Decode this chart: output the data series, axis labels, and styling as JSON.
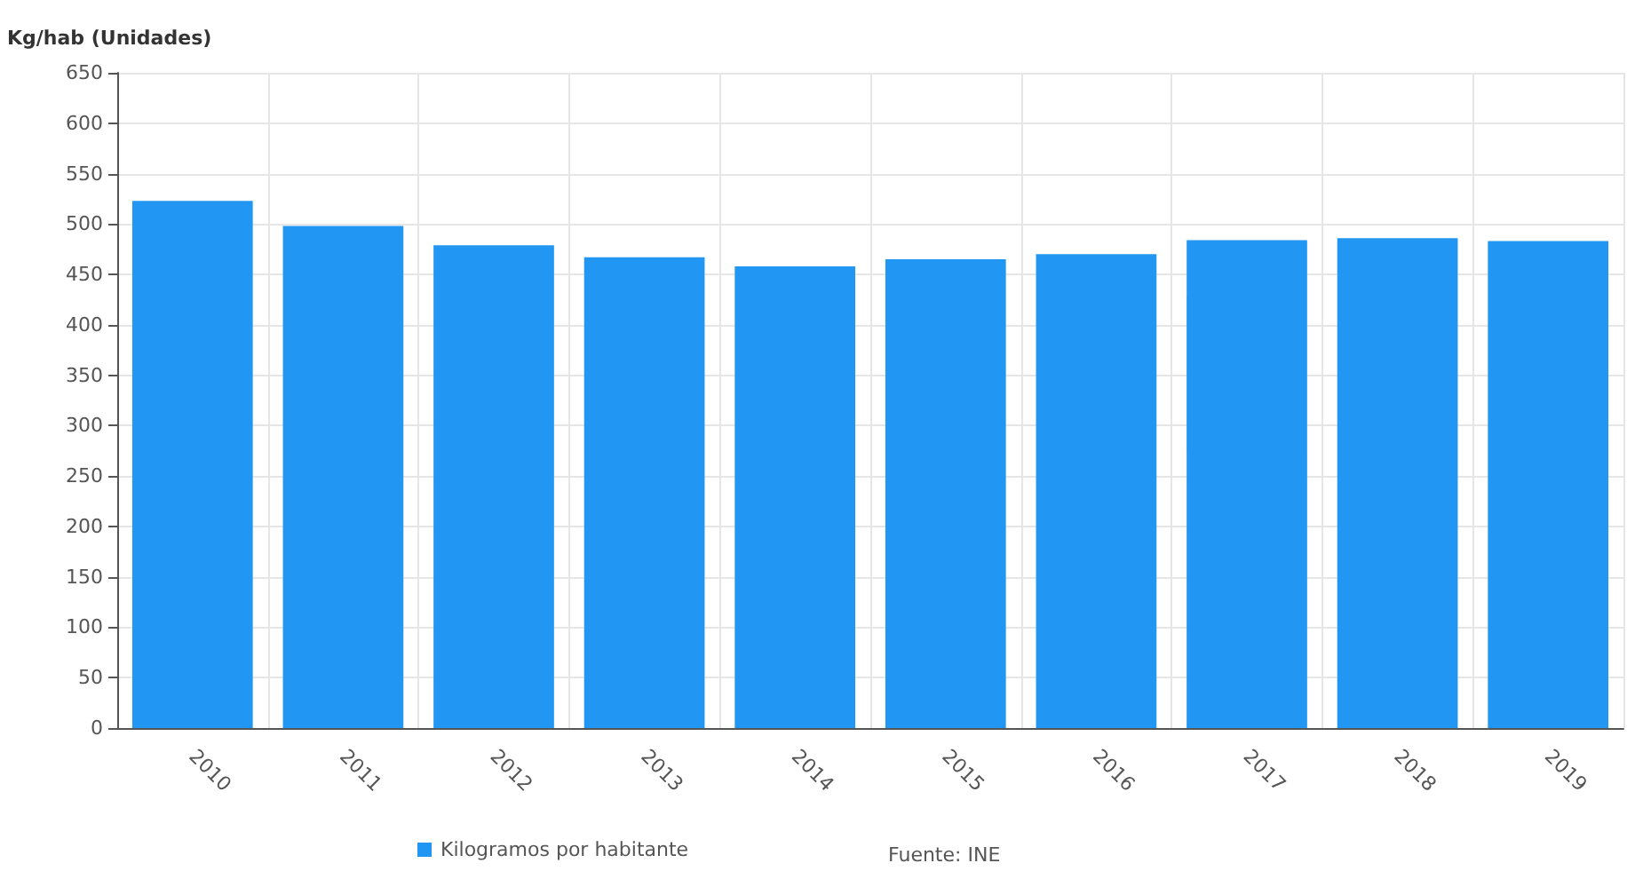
{
  "chart_data": {
    "type": "bar",
    "ylabel": "Kg/hab (Unidades)",
    "categories": [
      "2010",
      "2011",
      "2012",
      "2013",
      "2014",
      "2015",
      "2016",
      "2017",
      "2018",
      "2019"
    ],
    "series": [
      {
        "name": "Kilogramos por habitante",
        "color": "#2196f3",
        "values": [
          523,
          498,
          479,
          467,
          458,
          465,
          470,
          484,
          486,
          483
        ]
      }
    ],
    "ylim": [
      0,
      650
    ],
    "yticks": [
      0,
      50,
      100,
      150,
      200,
      250,
      300,
      350,
      400,
      450,
      500,
      550,
      600,
      650
    ],
    "grid": true,
    "legend": "bottom",
    "annotations": [
      "Fuente: INE"
    ]
  }
}
